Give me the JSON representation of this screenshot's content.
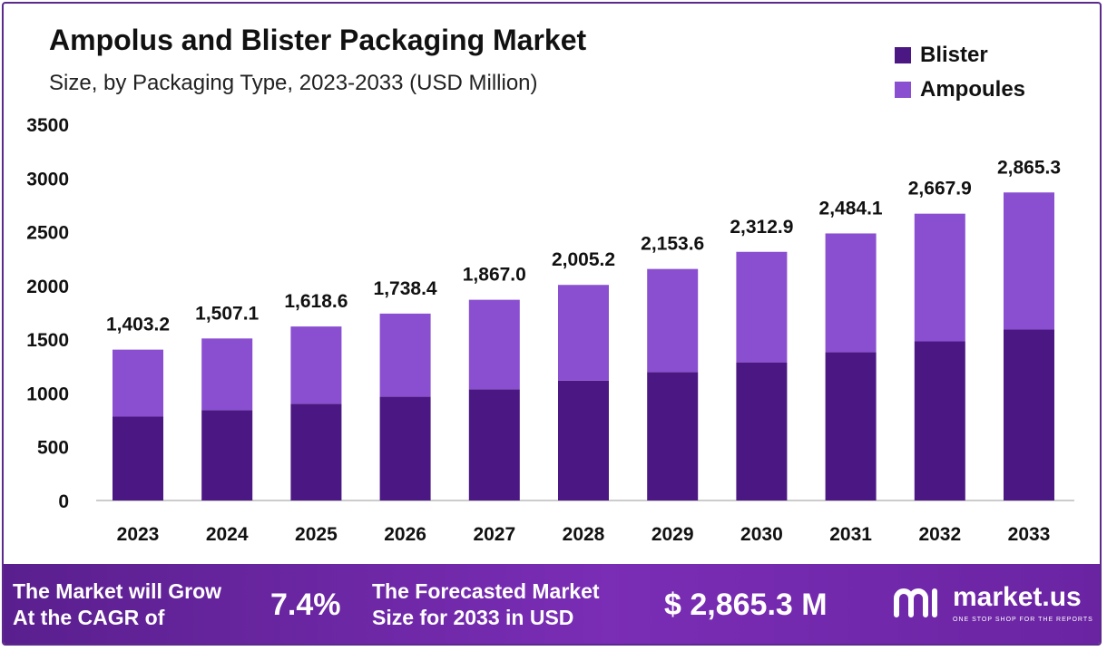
{
  "header": {
    "title": "Ampolus and Blister Packaging Market",
    "subtitle": "Size, by Packaging Type, 2023-2033 (USD Million)"
  },
  "legend": [
    {
      "label": "Blister",
      "color": "#4b1782"
    },
    {
      "label": "Ampoules",
      "color": "#8a4fd0"
    }
  ],
  "chart_data": {
    "type": "bar",
    "stacked": true,
    "categories": [
      "2023",
      "2024",
      "2025",
      "2026",
      "2027",
      "2028",
      "2029",
      "2030",
      "2031",
      "2032",
      "2033"
    ],
    "series": [
      {
        "name": "Blister",
        "color": "#4b1782",
        "values": [
          780,
          840,
          900,
          965,
          1035,
          1115,
          1195,
          1285,
          1380,
          1480,
          1590
        ]
      },
      {
        "name": "Ampoules",
        "color": "#8a4fd0",
        "values": [
          623.2,
          667.1,
          718.6,
          773.4,
          832.0,
          890.2,
          958.6,
          1027.9,
          1104.1,
          1187.9,
          1275.3
        ]
      }
    ],
    "totals": [
      1403.2,
      1507.1,
      1618.6,
      1738.4,
      1867.0,
      2005.2,
      2153.6,
      2312.9,
      2484.1,
      2667.9,
      2865.3
    ],
    "total_labels": [
      "1,403.2",
      "1,507.1",
      "1,618.6",
      "1,738.4",
      "1,867.0",
      "2,005.2",
      "2,153.6",
      "2,312.9",
      "2,484.1",
      "2,667.9",
      "2,865.3"
    ],
    "yticks": [
      0,
      500,
      1000,
      1500,
      2000,
      2500,
      3000,
      3500
    ],
    "ylim": [
      0,
      3500
    ],
    "grid": false,
    "legend_position": "top-right"
  },
  "banner": {
    "cagr_text": "The Market will Grow\nAt the CAGR of",
    "cagr_value": "7.4%",
    "forecast_text": "The Forecasted Market\nSize for 2033 in USD",
    "forecast_value": "$ 2,865.3 M",
    "brand_name": "market.us",
    "brand_tagline": "ONE STOP SHOP FOR THE REPORTS"
  }
}
